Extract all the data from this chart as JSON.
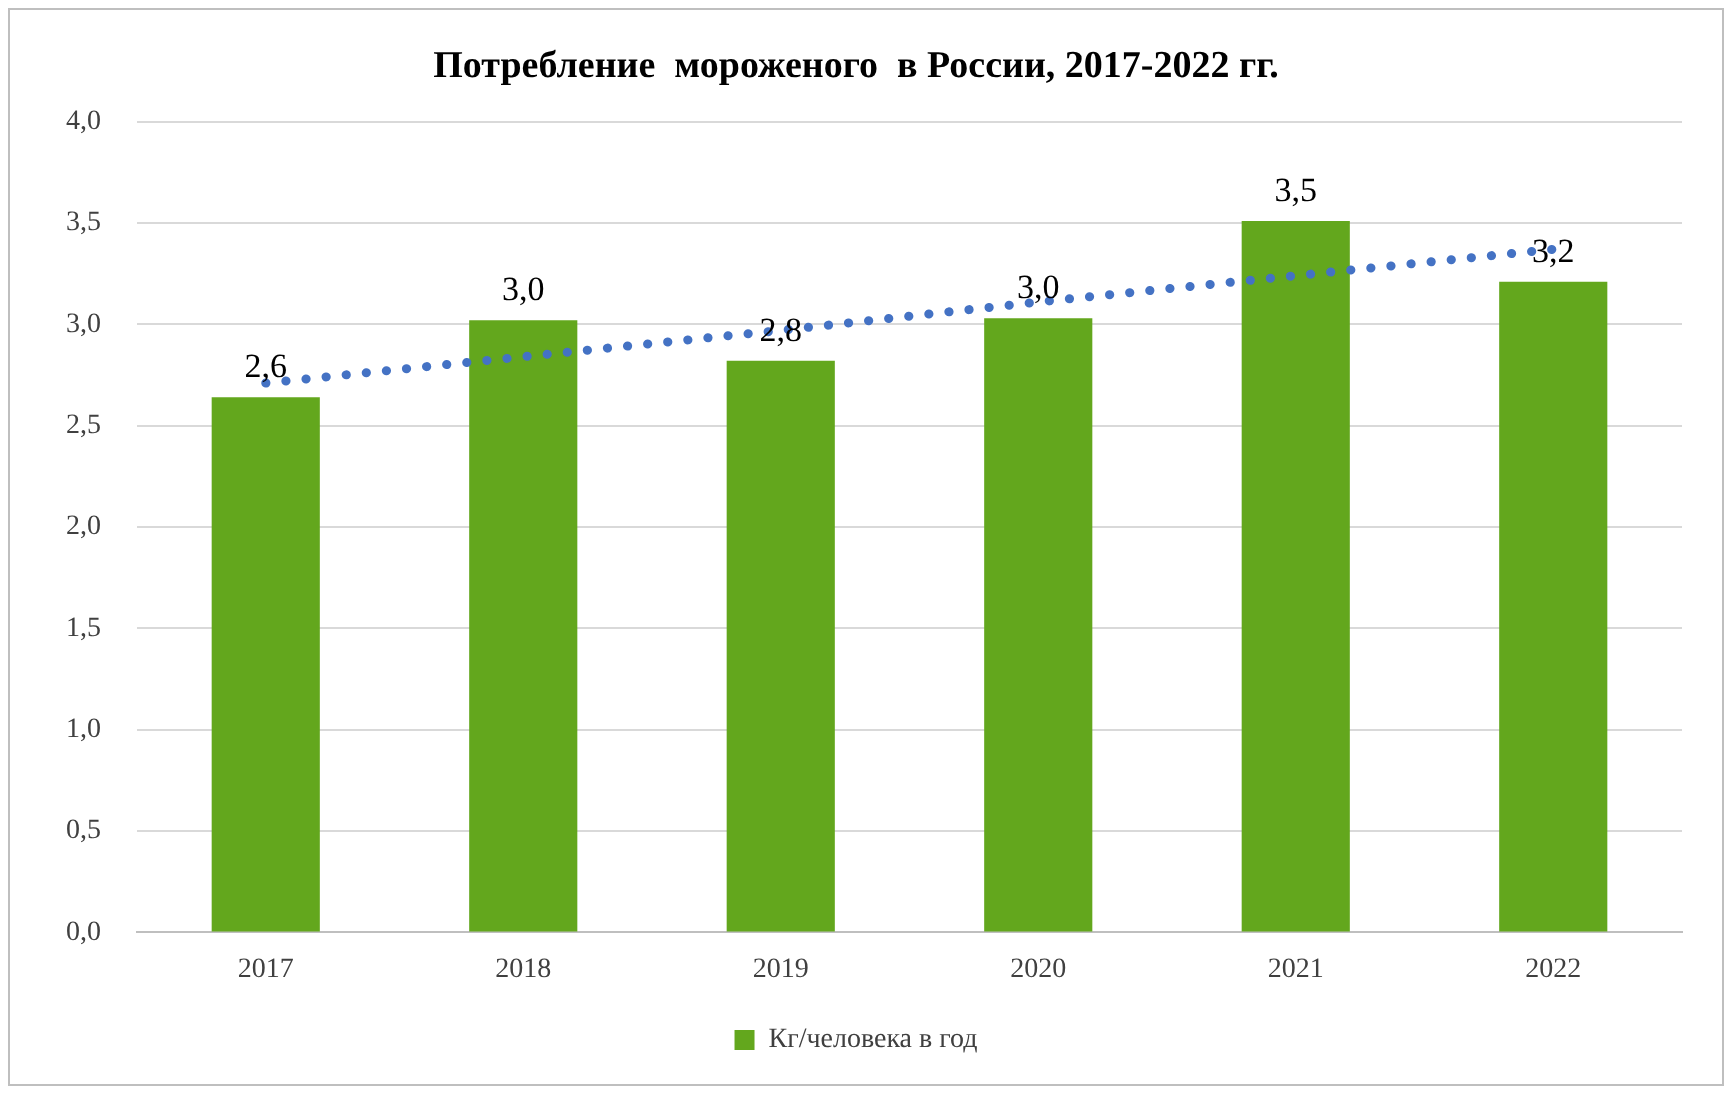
{
  "chart_data": {
    "type": "bar",
    "title": "Потребление  мороженого  в России, 2017-2022 гг.",
    "categories": [
      "2017",
      "2018",
      "2019",
      "2020",
      "2021",
      "2022"
    ],
    "series": [
      {
        "name": "Кг/человека в год",
        "color": "#63a71d",
        "values": [
          2.64,
          3.02,
          2.82,
          3.03,
          3.51,
          3.21
        ],
        "value_labels": [
          "2,6",
          "3,0",
          "2,8",
          "3,0",
          "3,5",
          "3,2"
        ]
      },
      {
        "type": "line",
        "color": "#4472c4",
        "line_style": "dotted",
        "marker": "none",
        "values": [
          2.71,
          2.84,
          2.97,
          3.11,
          3.24,
          3.37
        ]
      }
    ],
    "ylim": [
      0,
      4
    ],
    "yticks": [
      {
        "value": 0,
        "label": "0,0"
      },
      {
        "value": 0.5,
        "label": "0,5"
      },
      {
        "value": 1,
        "label": "1,0"
      },
      {
        "value": 1.5,
        "label": "1,5"
      },
      {
        "value": 2,
        "label": "2,0"
      },
      {
        "value": 2.5,
        "label": "2,5"
      },
      {
        "value": 3,
        "label": "3,0"
      },
      {
        "value": 3.5,
        "label": "3,5"
      },
      {
        "value": 4,
        "label": "4,0"
      }
    ],
    "grid": "y",
    "legend": "bottom"
  }
}
